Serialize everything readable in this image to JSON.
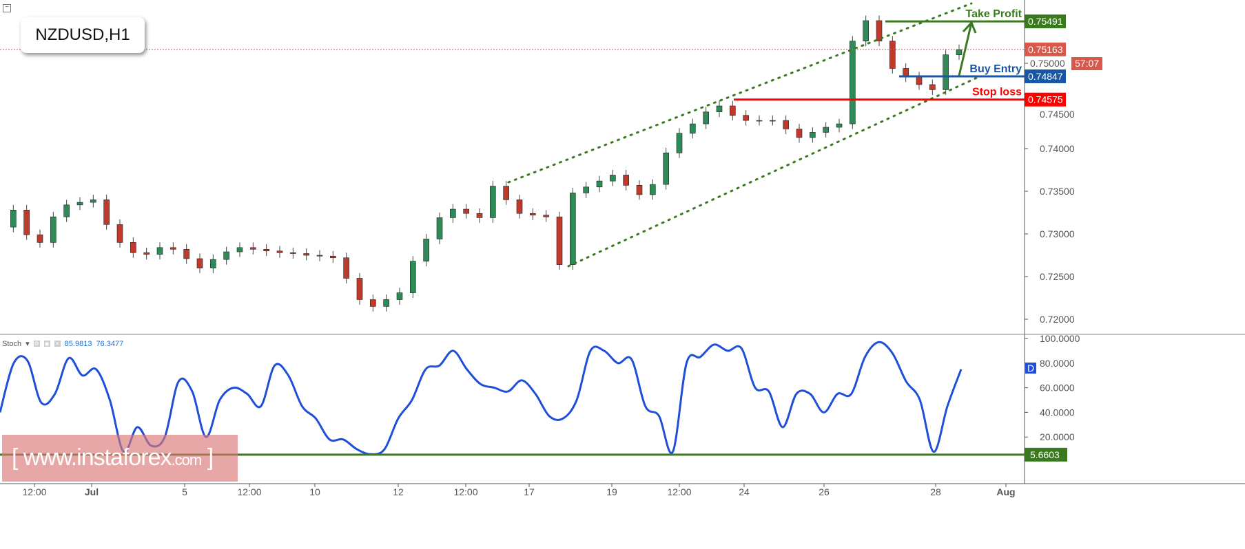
{
  "symbol": "NZDUSD,H1",
  "stoch": {
    "name": "Stoch",
    "value1": "85.9813",
    "value2": "76.3477",
    "d_badge": "D"
  },
  "watermark": {
    "prefix": "[",
    "domain": "www.instaforex",
    "tld": ".com",
    "suffix": "]"
  },
  "annotations": {
    "take_profit": {
      "label": "Take Profit",
      "price": "0.75491",
      "color": "#3a7a1e"
    },
    "buy_entry": {
      "label": "Buy Entry",
      "price": "0.74847",
      "color": "#1957a6"
    },
    "stop_loss": {
      "label": "Stop loss",
      "price": "0.74575",
      "color": "#ff0000"
    },
    "current_price": {
      "price": "0.75163",
      "countdown": "57:07",
      "color": "#d9584a"
    }
  },
  "chart_data": [
    {
      "type": "candlestick",
      "title": "NZDUSD,H1",
      "ylim": [
        0.7185,
        0.7575
      ],
      "y_ticks": [
        "0.72000",
        "0.72500",
        "0.73000",
        "0.73500",
        "0.74000",
        "0.74500",
        "0.75000"
      ],
      "x_ticks": [
        "12:00",
        "Jul",
        "5",
        "12:00",
        "10",
        "12",
        "12:00",
        "17",
        "19",
        "12:00",
        "24",
        "26",
        "28",
        "Aug"
      ],
      "closes": [
        0.7308,
        0.7328,
        0.7299,
        0.729,
        0.732,
        0.7334,
        0.7337,
        0.734,
        0.7311,
        0.729,
        0.7278,
        0.7276,
        0.7284,
        0.7282,
        0.7271,
        0.726,
        0.727,
        0.7279,
        0.7284,
        0.7282,
        0.728,
        0.7278,
        0.7277,
        0.7275,
        0.7274,
        0.7272,
        0.7248,
        0.7223,
        0.7215,
        0.7223,
        0.7231,
        0.7268,
        0.7294,
        0.7319,
        0.7329,
        0.7324,
        0.7319,
        0.7356,
        0.734,
        0.7324,
        0.7322,
        0.732,
        0.7264,
        0.7348,
        0.7355,
        0.7362,
        0.7369,
        0.7357,
        0.7346,
        0.7358,
        0.7395,
        0.7418,
        0.7429,
        0.7443,
        0.745,
        0.7439,
        0.7433,
        0.7433,
        0.7433,
        0.7423,
        0.7413,
        0.7419,
        0.7425,
        0.7429,
        0.7526,
        0.755,
        0.7526,
        0.7494,
        0.7484,
        0.7475,
        0.7469,
        0.751,
        0.7516
      ],
      "up_color": "#2e8b57",
      "down_color": "#c0392b",
      "trend_channel": "dotted green ascending channel"
    },
    {
      "type": "line",
      "title": "Stoch",
      "ylim": [
        0,
        100
      ],
      "y_ticks": [
        "20.0000",
        "40.0000",
        "60.0000",
        "80.0000",
        "100.0000"
      ],
      "level": "5.6603",
      "series": [
        {
          "values": [
            40,
            80,
            82,
            48,
            55,
            84,
            70,
            75,
            50,
            8,
            28,
            13,
            20,
            65,
            57,
            20,
            50,
            60,
            55,
            45,
            78,
            70,
            45,
            35,
            18,
            18,
            10,
            6,
            10,
            35,
            50,
            75,
            78,
            90,
            75,
            63,
            60,
            57,
            66,
            55,
            37,
            35,
            50,
            90,
            90,
            80,
            83,
            45,
            37,
            8,
            80,
            85,
            95,
            90,
            92,
            60,
            57,
            28,
            55,
            55,
            40,
            55,
            55,
            85,
            97,
            88,
            65,
            50,
            8,
            45,
            75
          ],
          "color": "#1f4fd8"
        }
      ]
    }
  ]
}
